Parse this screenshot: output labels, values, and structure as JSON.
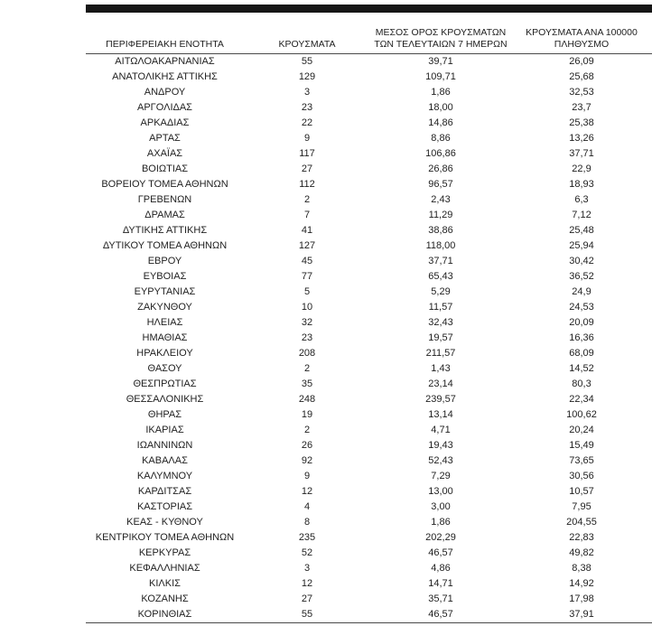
{
  "table": {
    "columns": [
      {
        "lines": [
          "ΠΕΡΙΦΕΡΕΙΑΚΗ ΕΝΟΤΗΤΑ"
        ]
      },
      {
        "lines": [
          "ΚΡΟΥΣΜΑΤΑ"
        ]
      },
      {
        "lines": [
          "ΜΕΣΟΣ ΟΡΟΣ ΚΡΟΥΣΜΑΤΩΝ",
          "ΤΩΝ ΤΕΛΕΥΤΑΙΩΝ 7 ΗΜΕΡΩΝ"
        ]
      },
      {
        "lines": [
          "ΚΡΟΥΣΜΑΤΑ ΑΝΑ 100000",
          "ΠΛΗΘΥΣΜΟ"
        ]
      }
    ],
    "rows": [
      {
        "region": "ΑΙΤΩΛΟΑΚΑΡΝΑΝΙΑΣ",
        "cases": "55",
        "avg7": "39,71",
        "per100k": "26,09"
      },
      {
        "region": "ΑΝΑΤΟΛΙΚΗΣ ΑΤΤΙΚΗΣ",
        "cases": "129",
        "avg7": "109,71",
        "per100k": "25,68"
      },
      {
        "region": "ΑΝΔΡΟΥ",
        "cases": "3",
        "avg7": "1,86",
        "per100k": "32,53"
      },
      {
        "region": "ΑΡΓΟΛΙΔΑΣ",
        "cases": "23",
        "avg7": "18,00",
        "per100k": "23,7"
      },
      {
        "region": "ΑΡΚΑΔΙΑΣ",
        "cases": "22",
        "avg7": "14,86",
        "per100k": "25,38"
      },
      {
        "region": "ΑΡΤΑΣ",
        "cases": "9",
        "avg7": "8,86",
        "per100k": "13,26"
      },
      {
        "region": "ΑΧΑΪΑΣ",
        "cases": "117",
        "avg7": "106,86",
        "per100k": "37,71"
      },
      {
        "region": "ΒΟΙΩΤΙΑΣ",
        "cases": "27",
        "avg7": "26,86",
        "per100k": "22,9"
      },
      {
        "region": "ΒΟΡΕΙΟΥ ΤΟΜΕΑ ΑΘΗΝΩΝ",
        "cases": "112",
        "avg7": "96,57",
        "per100k": "18,93"
      },
      {
        "region": "ΓΡΕΒΕΝΩΝ",
        "cases": "2",
        "avg7": "2,43",
        "per100k": "6,3"
      },
      {
        "region": "ΔΡΑΜΑΣ",
        "cases": "7",
        "avg7": "11,29",
        "per100k": "7,12"
      },
      {
        "region": "ΔΥΤΙΚΗΣ ΑΤΤΙΚΗΣ",
        "cases": "41",
        "avg7": "38,86",
        "per100k": "25,48"
      },
      {
        "region": "ΔΥΤΙΚΟΥ ΤΟΜΕΑ ΑΘΗΝΩΝ",
        "cases": "127",
        "avg7": "118,00",
        "per100k": "25,94"
      },
      {
        "region": "ΕΒΡΟΥ",
        "cases": "45",
        "avg7": "37,71",
        "per100k": "30,42"
      },
      {
        "region": "ΕΥΒΟΙΑΣ",
        "cases": "77",
        "avg7": "65,43",
        "per100k": "36,52"
      },
      {
        "region": "ΕΥΡΥΤΑΝΙΑΣ",
        "cases": "5",
        "avg7": "5,29",
        "per100k": "24,9"
      },
      {
        "region": "ΖΑΚΥΝΘΟΥ",
        "cases": "10",
        "avg7": "11,57",
        "per100k": "24,53"
      },
      {
        "region": "ΗΛΕΙΑΣ",
        "cases": "32",
        "avg7": "32,43",
        "per100k": "20,09"
      },
      {
        "region": "ΗΜΑΘΙΑΣ",
        "cases": "23",
        "avg7": "19,57",
        "per100k": "16,36"
      },
      {
        "region": "ΗΡΑΚΛΕΙΟΥ",
        "cases": "208",
        "avg7": "211,57",
        "per100k": "68,09"
      },
      {
        "region": "ΘΑΣΟΥ",
        "cases": "2",
        "avg7": "1,43",
        "per100k": "14,52"
      },
      {
        "region": "ΘΕΣΠΡΩΤΙΑΣ",
        "cases": "35",
        "avg7": "23,14",
        "per100k": "80,3"
      },
      {
        "region": "ΘΕΣΣΑΛΟΝΙΚΗΣ",
        "cases": "248",
        "avg7": "239,57",
        "per100k": "22,34"
      },
      {
        "region": "ΘΗΡΑΣ",
        "cases": "19",
        "avg7": "13,14",
        "per100k": "100,62"
      },
      {
        "region": "ΙΚΑΡΙΑΣ",
        "cases": "2",
        "avg7": "4,71",
        "per100k": "20,24"
      },
      {
        "region": "ΙΩΑΝΝΙΝΩΝ",
        "cases": "26",
        "avg7": "19,43",
        "per100k": "15,49"
      },
      {
        "region": "ΚΑΒΑΛΑΣ",
        "cases": "92",
        "avg7": "52,43",
        "per100k": "73,65"
      },
      {
        "region": "ΚΑΛΥΜΝΟΥ",
        "cases": "9",
        "avg7": "7,29",
        "per100k": "30,56"
      },
      {
        "region": "ΚΑΡΔΙΤΣΑΣ",
        "cases": "12",
        "avg7": "13,00",
        "per100k": "10,57"
      },
      {
        "region": "ΚΑΣΤΟΡΙΑΣ",
        "cases": "4",
        "avg7": "3,00",
        "per100k": "7,95"
      },
      {
        "region": "ΚΕΑΣ - ΚΥΘΝΟΥ",
        "cases": "8",
        "avg7": "1,86",
        "per100k": "204,55"
      },
      {
        "region": "ΚΕΝΤΡΙΚΟΥ ΤΟΜΕΑ ΑΘΗΝΩΝ",
        "cases": "235",
        "avg7": "202,29",
        "per100k": "22,83"
      },
      {
        "region": "ΚΕΡΚΥΡΑΣ",
        "cases": "52",
        "avg7": "46,57",
        "per100k": "49,82"
      },
      {
        "region": "ΚΕΦΑΛΛΗΝΙΑΣ",
        "cases": "3",
        "avg7": "4,86",
        "per100k": "8,38"
      },
      {
        "region": "ΚΙΛΚΙΣ",
        "cases": "12",
        "avg7": "14,71",
        "per100k": "14,92"
      },
      {
        "region": "ΚΟΖΑΝΗΣ",
        "cases": "27",
        "avg7": "35,71",
        "per100k": "17,98"
      },
      {
        "region": "ΚΟΡΙΝΘΙΑΣ",
        "cases": "55",
        "avg7": "46,57",
        "per100k": "37,91"
      }
    ]
  },
  "colors": {
    "rule": "#161616",
    "text": "#1f1f1f",
    "background": "#ffffff"
  }
}
